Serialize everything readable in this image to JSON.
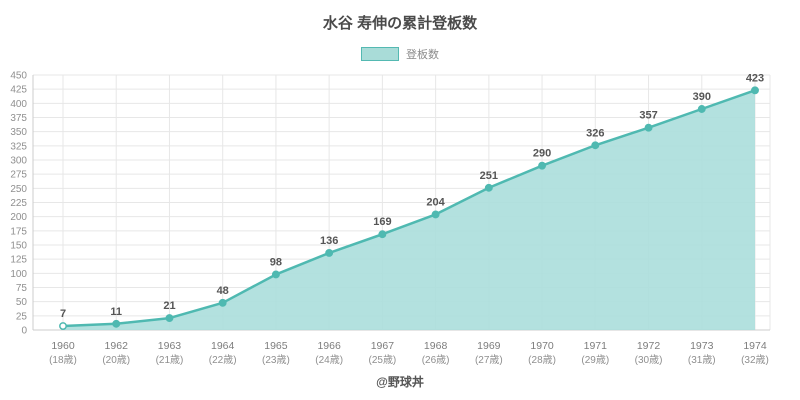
{
  "title": "水谷 寿伸の累計登板数",
  "legend": {
    "label": "登板数"
  },
  "footer": "@野球丼",
  "colors": {
    "line": "#4fb9b1",
    "fill": "#abdedb",
    "grid": "#e7e7e7",
    "axis_line": "#cccccc",
    "value_label": "#555555",
    "tick_label": "#8f8f8f"
  },
  "chart_data": {
    "type": "area",
    "title": "水谷 寿伸の累計登板数",
    "categories": [
      "1960",
      "1962",
      "1963",
      "1964",
      "1965",
      "1966",
      "1967",
      "1968",
      "1969",
      "1970",
      "1971",
      "1972",
      "1973",
      "1974"
    ],
    "age_labels": [
      "(18歳)",
      "(20歳)",
      "(21歳)",
      "(22歳)",
      "(23歳)",
      "(24歳)",
      "(25歳)",
      "(26歳)",
      "(27歳)",
      "(28歳)",
      "(29歳)",
      "(30歳)",
      "(31歳)",
      "(32歳)"
    ],
    "series": [
      {
        "name": "登板数",
        "values": [
          7,
          11,
          21,
          48,
          98,
          136,
          169,
          204,
          251,
          290,
          326,
          357,
          390,
          423
        ]
      }
    ],
    "xlabel": "",
    "ylabel": "",
    "ylim": [
      0,
      450
    ],
    "ytick_step": 25,
    "grid": true,
    "legend_position": "top"
  }
}
